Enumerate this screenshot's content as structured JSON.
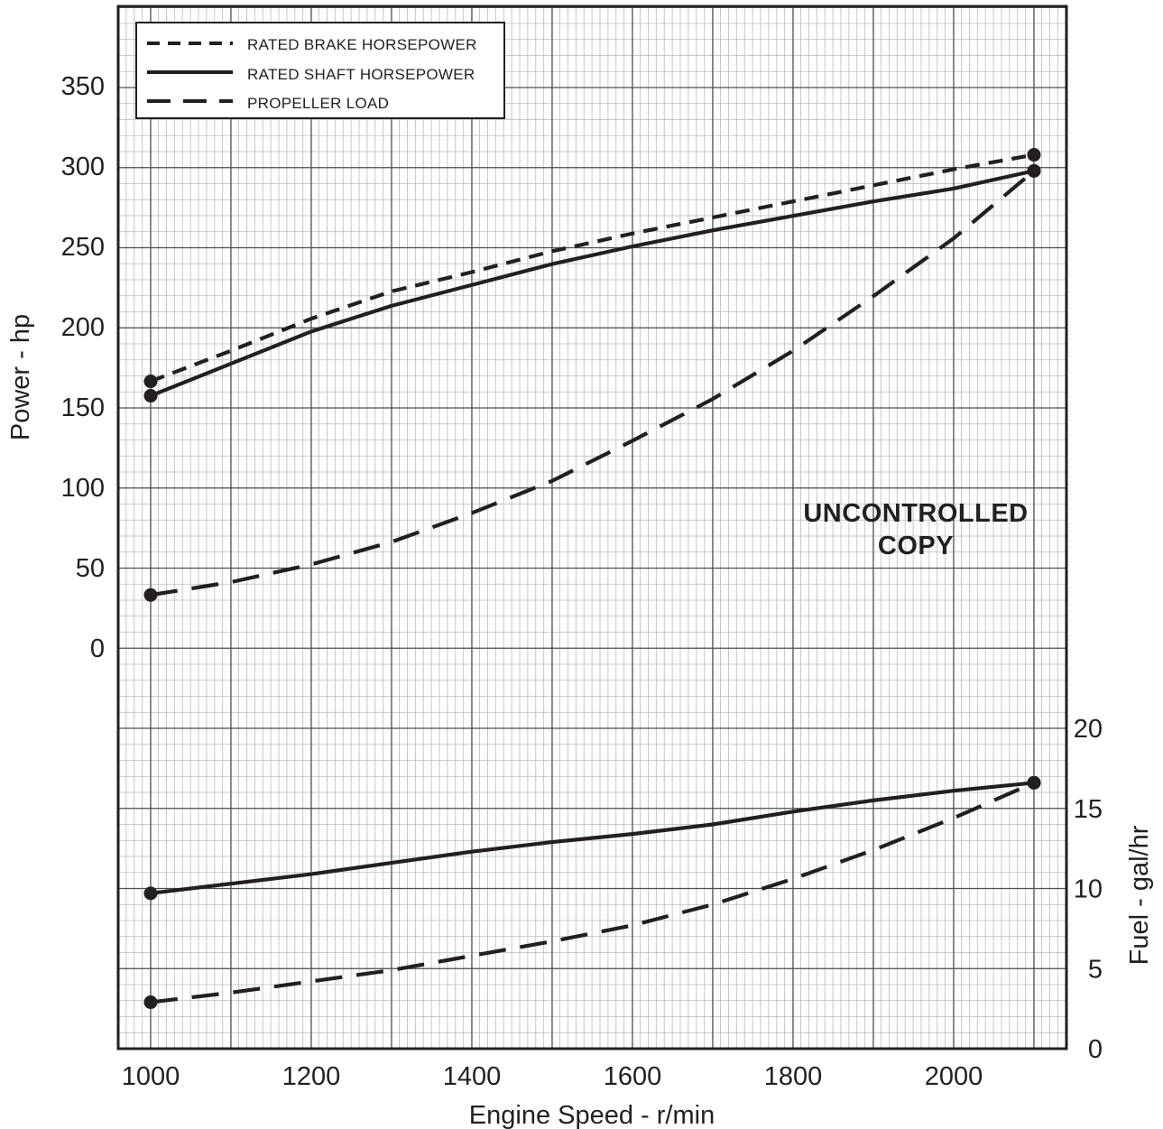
{
  "chart_data": {
    "type": "line",
    "xlabel": "Engine Speed - r/min",
    "ylabel_left": "Power - hp",
    "ylabel_right": "Fuel - gal/hr",
    "x_ticks": [
      "1000",
      "1200",
      "1400",
      "1600",
      "1800",
      "2000"
    ],
    "y_left_ticks": [
      "0",
      "50",
      "100",
      "150",
      "200",
      "250",
      "300",
      "350"
    ],
    "y_right_ticks": [
      "0",
      "5",
      "10",
      "15",
      "20"
    ],
    "xlim": [
      980,
      2100
    ],
    "ylim_left": [
      0,
      390
    ],
    "ylim_right": [
      0,
      20
    ],
    "grid": true,
    "legend_position": "top-left",
    "legend": [
      {
        "label": "RATED BRAKE HORSEPOWER",
        "style": "short-dash"
      },
      {
        "label": "RATED SHAFT HORSEPOWER",
        "style": "solid"
      },
      {
        "label": "PROPELLER LOAD",
        "style": "long-dash"
      }
    ],
    "annotation": [
      "UNCONTROLLED",
      "COPY"
    ],
    "power_series": [
      {
        "name": "RATED BRAKE HORSEPOWER",
        "style": "short-dash",
        "x": [
          1000,
          1100,
          1200,
          1300,
          1400,
          1500,
          1600,
          1700,
          1800,
          1900,
          2000,
          2100
        ],
        "y": [
          166,
          185,
          205,
          222,
          234,
          247,
          258,
          268,
          278,
          288,
          298,
          307
        ]
      },
      {
        "name": "RATED SHAFT HORSEPOWER",
        "style": "solid",
        "x": [
          1000,
          1100,
          1200,
          1300,
          1400,
          1500,
          1600,
          1700,
          1800,
          1900,
          2000,
          2100
        ],
        "y": [
          157,
          177,
          197,
          213,
          226,
          239,
          250,
          260,
          269,
          278,
          286,
          297
        ]
      },
      {
        "name": "PROPELLER LOAD",
        "style": "long-dash",
        "x": [
          1000,
          1100,
          1200,
          1300,
          1400,
          1500,
          1600,
          1700,
          1800,
          1900,
          2000,
          2100
        ],
        "y": [
          33,
          41,
          52,
          66,
          84,
          104,
          129,
          155,
          185,
          219,
          255,
          297
        ]
      }
    ],
    "fuel_series": [
      {
        "name": "RATED SHAFT HORSEPOWER",
        "style": "solid",
        "x": [
          1000,
          1100,
          1200,
          1300,
          1400,
          1500,
          1600,
          1700,
          1800,
          1900,
          2000,
          2100
        ],
        "y": [
          9.7,
          10.3,
          10.9,
          11.6,
          12.3,
          12.9,
          13.4,
          14.0,
          14.8,
          15.5,
          16.1,
          16.6
        ]
      },
      {
        "name": "PROPELLER LOAD",
        "style": "long-dash",
        "x": [
          1000,
          1100,
          1200,
          1300,
          1400,
          1500,
          1600,
          1700,
          1800,
          1900,
          2000,
          2100
        ],
        "y": [
          2.9,
          3.5,
          4.2,
          4.9,
          5.8,
          6.7,
          7.7,
          9.0,
          10.6,
          12.4,
          14.4,
          16.6
        ]
      }
    ]
  }
}
